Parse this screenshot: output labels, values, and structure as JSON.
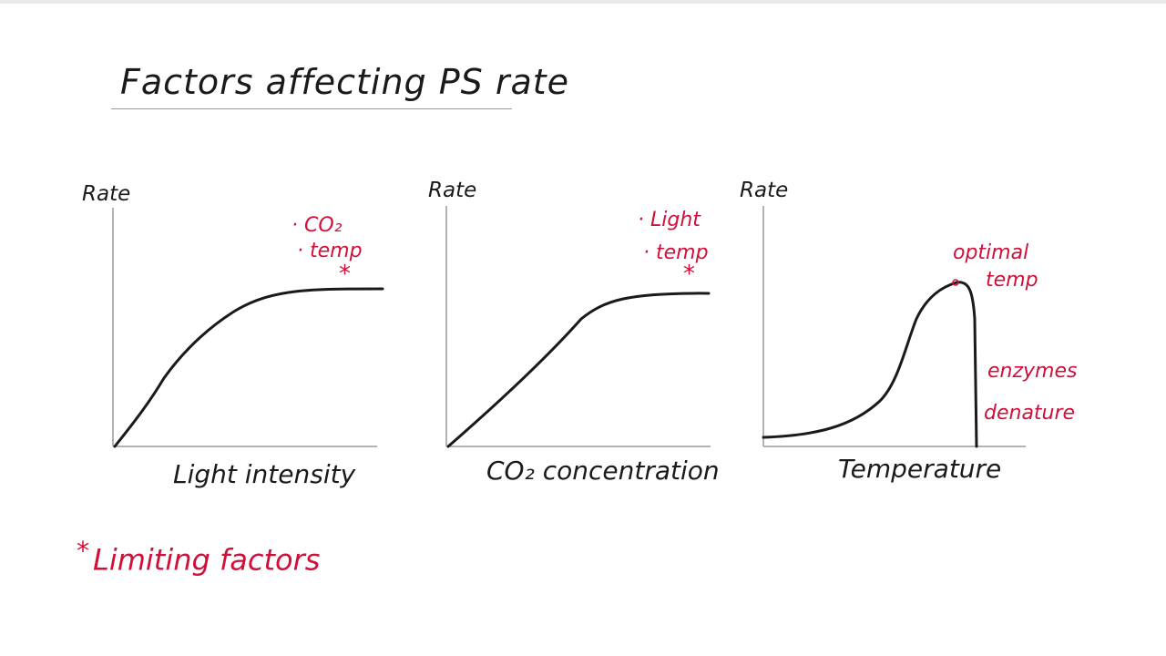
{
  "title": "Factors affecting PS rate",
  "graphs": [
    {
      "y_label": "Rate",
      "x_label": "Light intensity",
      "notes": [
        "· CO₂",
        "· temp"
      ],
      "star": "*",
      "curve": "plateau"
    },
    {
      "y_label": "Rate",
      "x_label": "CO₂ concentration",
      "notes": [
        "· Light",
        "· temp"
      ],
      "star": "*",
      "curve": "plateau"
    },
    {
      "y_label": "Rate",
      "x_label": "Temperature",
      "peak_label_1": "optimal",
      "peak_label_2": "temp",
      "side_label_1": "enzymes",
      "side_label_2": "denature",
      "curve": "peak"
    }
  ],
  "footnote": {
    "asterisk": "*",
    "text": "Limiting factors"
  },
  "colors": {
    "ink": "#1a1a1a",
    "annotation": "#d0103a",
    "axis": "#9a9a9a"
  }
}
